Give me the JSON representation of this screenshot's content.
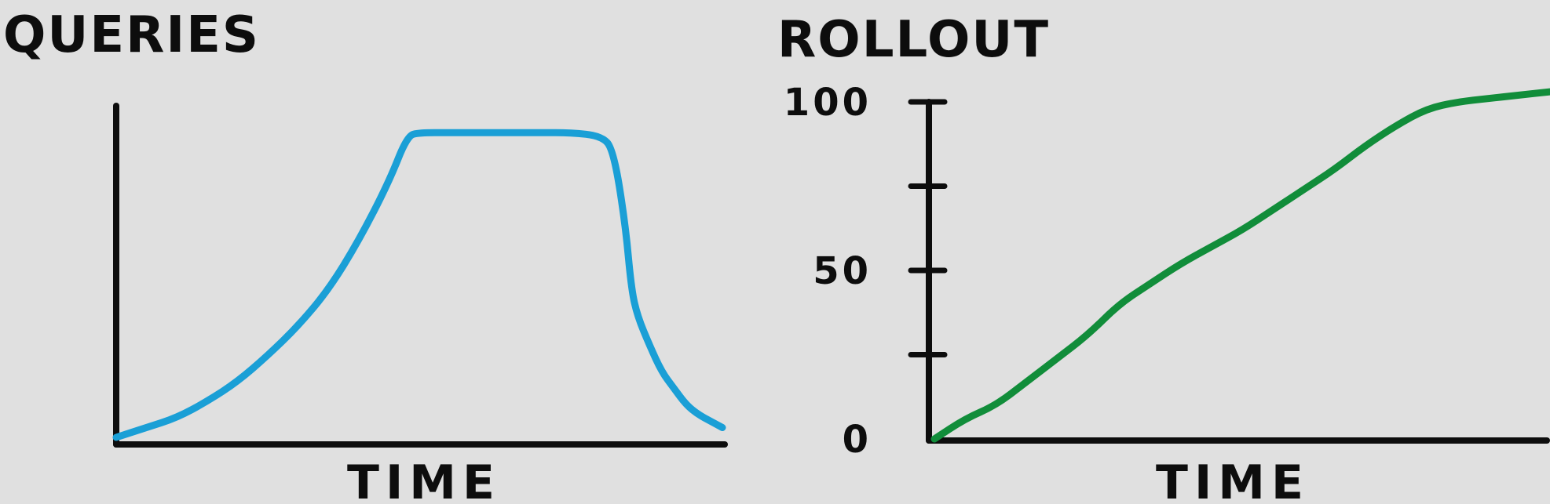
{
  "chart_data": [
    {
      "type": "line",
      "title": "QUERIES",
      "xlabel": "TIME",
      "ylabel": "",
      "color": "#1a9fd6",
      "ylim": [
        0,
        100
      ],
      "xlim": [
        0,
        100
      ],
      "x": [
        0,
        5,
        10,
        15,
        20,
        25,
        30,
        35,
        40,
        45,
        48,
        50,
        55,
        60,
        65,
        70,
        75,
        80,
        82,
        84,
        85,
        86,
        88,
        90,
        92,
        94,
        96,
        98,
        100
      ],
      "y": [
        0,
        3,
        6,
        11,
        17,
        25,
        34,
        45,
        60,
        78,
        92,
        93,
        93,
        93,
        93,
        93,
        93,
        92,
        88,
        65,
        45,
        37,
        28,
        20,
        15,
        10,
        7,
        5,
        3
      ]
    },
    {
      "type": "line",
      "title": "ROLLOUT",
      "xlabel": "TIME",
      "ylabel": "",
      "color": "#118d3a",
      "ylim": [
        0,
        100
      ],
      "xlim": [
        0,
        100
      ],
      "yticks": [
        0,
        25,
        50,
        75,
        100
      ],
      "ytick_labels": [
        "0",
        "",
        "50",
        "",
        "100"
      ],
      "x": [
        0,
        5,
        10,
        15,
        20,
        25,
        30,
        35,
        40,
        45,
        50,
        55,
        60,
        65,
        70,
        75,
        80,
        85,
        90,
        95,
        100
      ],
      "y": [
        0,
        6,
        10,
        17,
        24,
        31,
        40,
        46,
        52,
        57,
        62,
        68,
        74,
        80,
        87,
        93,
        98,
        100,
        101,
        102,
        103
      ]
    }
  ]
}
